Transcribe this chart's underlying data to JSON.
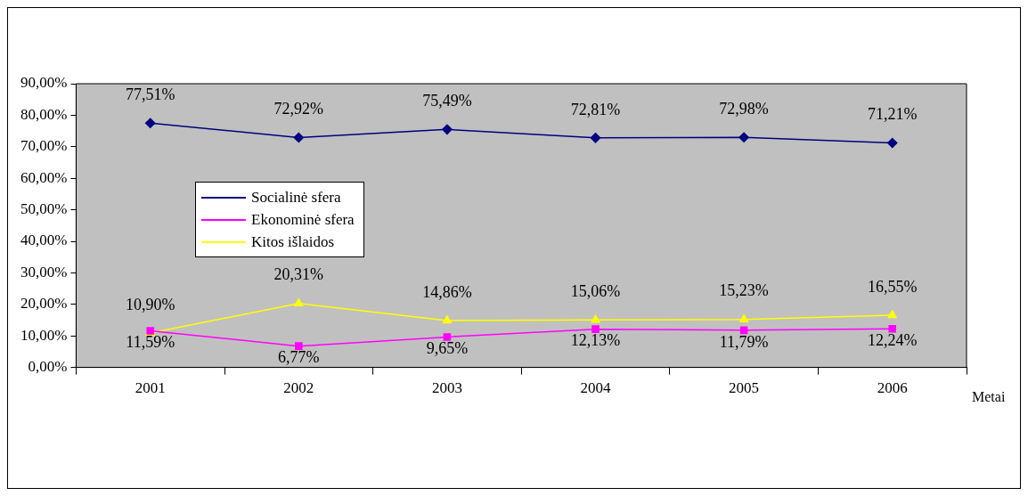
{
  "chart_data": {
    "type": "line",
    "xlabel": "Metai",
    "categories": [
      "2001",
      "2002",
      "2003",
      "2004",
      "2005",
      "2006"
    ],
    "series": [
      {
        "name": "Socialinė sfera",
        "color": "#000080",
        "marker": "diamond",
        "values": [
          77.51,
          72.92,
          75.49,
          72.81,
          72.98,
          71.21
        ],
        "value_labels": [
          "77,51%",
          "72,92%",
          "75,49%",
          "72,81%",
          "72,98%",
          "71,21%"
        ]
      },
      {
        "name": "Ekonominė sfera",
        "color": "#ff00ff",
        "marker": "square",
        "values": [
          11.59,
          6.77,
          9.65,
          12.13,
          11.79,
          12.24
        ],
        "value_labels": [
          "11,59%",
          "6,77%",
          "9,65%",
          "12,13%",
          "11,79%",
          "12,24%"
        ]
      },
      {
        "name": "Kitos išlaidos",
        "color": "#ffff00",
        "marker": "triangle",
        "values": [
          10.9,
          20.31,
          14.86,
          15.06,
          15.23,
          16.55
        ],
        "value_labels": [
          "10,90%",
          "20,31%",
          "14,86%",
          "15,06%",
          "15,23%",
          "16,55%"
        ]
      }
    ],
    "ylim": [
      0,
      90
    ],
    "yticks": [
      {
        "value": 0,
        "label": "0,00%"
      },
      {
        "value": 10,
        "label": "10,00%"
      },
      {
        "value": 20,
        "label": "20,00%"
      },
      {
        "value": 30,
        "label": "30,00%"
      },
      {
        "value": 40,
        "label": "40,00%"
      },
      {
        "value": 50,
        "label": "50,00%"
      },
      {
        "value": 60,
        "label": "60,00%"
      },
      {
        "value": 70,
        "label": "70,00%"
      },
      {
        "value": 80,
        "label": "80,00%"
      },
      {
        "value": 90,
        "label": "90,00%"
      }
    ],
    "grid": false,
    "legend": "left",
    "line_style": "solid"
  }
}
